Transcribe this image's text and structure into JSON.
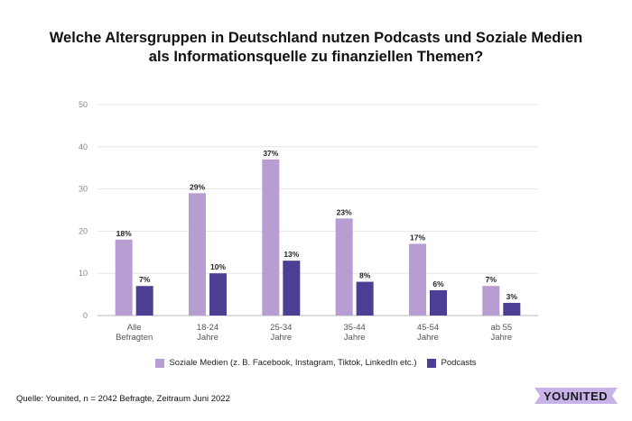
{
  "chart_data": {
    "type": "bar",
    "title_line1": "Welche Altersgruppen in Deutschland nutzen Podcasts und Soziale Medien",
    "title_line2": "als Informationsquelle zu finanziellen Themen?",
    "categories": [
      [
        "Alle",
        "Befragten"
      ],
      [
        "18-24",
        "Jahre"
      ],
      [
        "25-34",
        "Jahre"
      ],
      [
        "35-44",
        "Jahre"
      ],
      [
        "45-54",
        "Jahre"
      ],
      [
        "ab 55",
        "Jahre"
      ]
    ],
    "series": [
      {
        "name": "Soziale Medien (z. B. Facebook, Instagram, Tiktok, LinkedIn etc.)",
        "color": "#b89dd3",
        "values": [
          18,
          29,
          37,
          23,
          17,
          7
        ],
        "labels": [
          "18%",
          "29%",
          "37%",
          "23%",
          "17%",
          "7%"
        ]
      },
      {
        "name": "Podcasts",
        "color": "#4b3f93",
        "values": [
          7,
          10,
          13,
          8,
          6,
          3
        ],
        "labels": [
          "7%",
          "10%",
          "13%",
          "8%",
          "6%",
          "3%"
        ]
      }
    ],
    "ylim": [
      0,
      50
    ],
    "yticks": [
      "0",
      "10",
      "20",
      "30",
      "40",
      "50"
    ],
    "grid": true,
    "legend": "bottom"
  },
  "footer": {
    "source": "Quelle: Younited, n = 2042 Befragte, Zeitraum Juni 2022"
  },
  "logo": {
    "text": "YOUNITED",
    "color": "#c7b3e8"
  }
}
